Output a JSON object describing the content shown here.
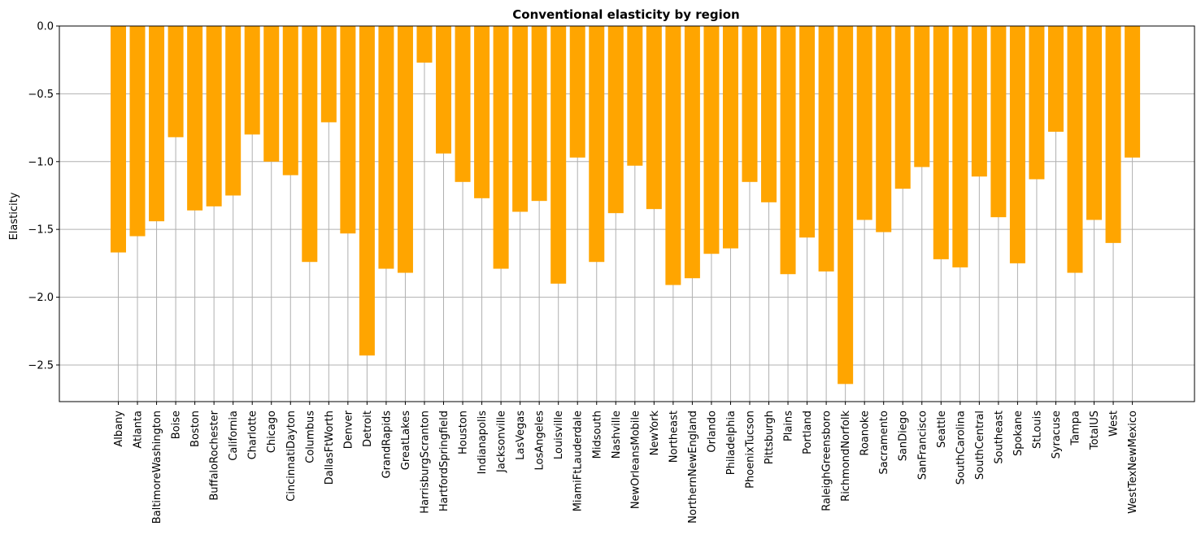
{
  "chart_data": {
    "type": "bar",
    "title": "Conventional elasticity by region",
    "ylabel": "Elasticity",
    "xlabel": "",
    "ylim": [
      -2.77,
      0.0
    ],
    "yticks": [
      0.0,
      -0.5,
      -1.0,
      -1.5,
      -2.0,
      -2.5
    ],
    "ytick_labels": [
      "0.0",
      "−0.5",
      "−1.0",
      "−1.5",
      "−2.0",
      "−2.5"
    ],
    "grid": true,
    "bar_color": "#ffa500",
    "grid_color": "#b0b0b0",
    "categories": [
      "Albany",
      "Atlanta",
      "BaltimoreWashington",
      "Boise",
      "Boston",
      "BuffaloRochester",
      "California",
      "Charlotte",
      "Chicago",
      "CincinnatiDayton",
      "Columbus",
      "DallasFtWorth",
      "Denver",
      "Detroit",
      "GrandRapids",
      "GreatLakes",
      "HarrisburgScranton",
      "HartfordSpringfield",
      "Houston",
      "Indianapolis",
      "Jacksonville",
      "LasVegas",
      "LosAngeles",
      "Louisville",
      "MiamiFtLauderdale",
      "Midsouth",
      "Nashville",
      "NewOrleansMobile",
      "NewYork",
      "Northeast",
      "NorthernNewEngland",
      "Orlando",
      "Philadelphia",
      "PhoenixTucson",
      "Pittsburgh",
      "Plains",
      "Portland",
      "RaleighGreensboro",
      "RichmondNorfolk",
      "Roanoke",
      "Sacramento",
      "SanDiego",
      "SanFrancisco",
      "Seattle",
      "SouthCarolina",
      "SouthCentral",
      "Southeast",
      "Spokane",
      "StLouis",
      "Syracuse",
      "Tampa",
      "TotalUS",
      "West",
      "WestTexNewMexico"
    ],
    "values": [
      -1.67,
      -1.55,
      -1.44,
      -0.82,
      -1.36,
      -1.33,
      -1.25,
      -0.8,
      -1.0,
      -1.1,
      -1.74,
      -0.71,
      -1.53,
      -2.43,
      -1.79,
      -1.82,
      -0.27,
      -0.94,
      -1.15,
      -1.27,
      -1.79,
      -1.37,
      -1.29,
      -1.9,
      -0.97,
      -1.74,
      -1.38,
      -1.03,
      -1.35,
      -1.91,
      -1.86,
      -1.68,
      -1.64,
      -1.15,
      -1.3,
      -1.83,
      -1.56,
      -1.81,
      -2.64,
      -1.43,
      -1.52,
      -1.2,
      -1.04,
      -1.72,
      -1.78,
      -1.11,
      -1.41,
      -1.75,
      -1.13,
      -0.78,
      -1.82,
      -1.43,
      -1.6,
      -0.97
    ]
  }
}
